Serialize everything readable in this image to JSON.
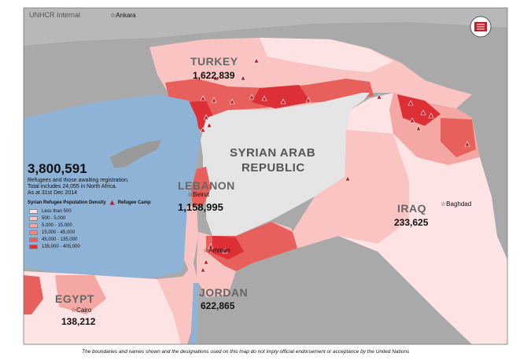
{
  "header": {
    "label": "UNHCR Internal"
  },
  "logo": {
    "icon": "unhcr-globe-logo-icon",
    "color": "#c0202a"
  },
  "countries": {
    "turkey": {
      "name": "TURKEY",
      "refugees": "1,622,839"
    },
    "syria": {
      "name_line1": "SYRIAN ARAB",
      "name_line2": "REPUBLIC"
    },
    "lebanon": {
      "name": "LEBANON",
      "refugees": "1,158,995"
    },
    "iraq": {
      "name": "IRAQ",
      "refugees": "233,625"
    },
    "jordan": {
      "name": "JORDAN",
      "refugees": "622,865"
    },
    "egypt": {
      "name": "EGYPT",
      "refugees": "138,212"
    }
  },
  "cities": {
    "ankara": "Ankara",
    "beirut": "Beirut",
    "amman": "Amman",
    "baghdad": "Baghdad",
    "cairo": "Cairo"
  },
  "summary": {
    "total": "3,800,591",
    "line1": "Refugees and those awaiting registration.",
    "line2": "Total includes 24,055 in North Africa.",
    "line3": "As at 31st Dec 2014"
  },
  "legend": {
    "title": "Syrian Refugee Population Density",
    "camp_label": "Refugee Camp",
    "camp_icon": "refugee-camp-tent-icon",
    "classes": [
      {
        "label": "Less than 500",
        "color": "#fde3e4"
      },
      {
        "label": "500 - 5,000",
        "color": "#f9c4c2"
      },
      {
        "label": "5,000 - 15,000",
        "color": "#f5a7a3"
      },
      {
        "label": "15,000 - 45,000",
        "color": "#ef8882"
      },
      {
        "label": "45,000 - 135,000",
        "color": "#e7605c"
      },
      {
        "label": "135,000 - 405,000",
        "color": "#dc2f36"
      }
    ]
  },
  "colors": {
    "sea": "#8fb3d7",
    "syria": "#e5e5e5",
    "other_land": "#a9a9a9",
    "camp": "#c0202a"
  },
  "disclaimer": "The boundaries and names shown and the designations used on this map do not imply official endorsement or acceptance by the United Nations"
}
